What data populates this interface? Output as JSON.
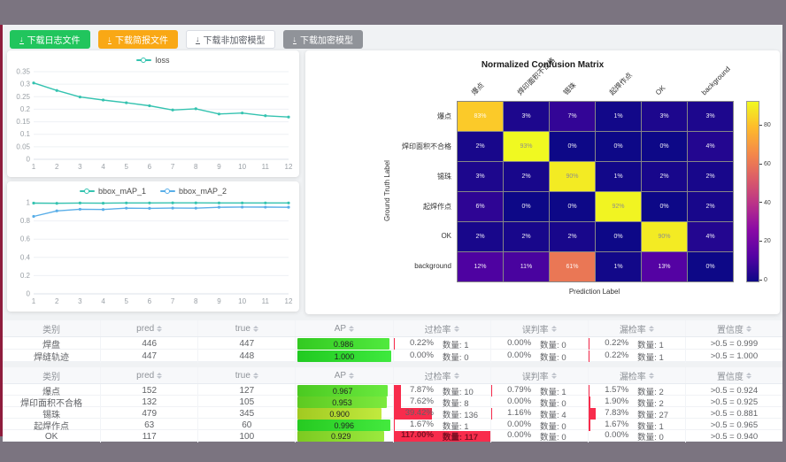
{
  "toolbar": {
    "download_icon": "↓",
    "buttons": [
      {
        "label": "下载日志文件",
        "variant": "green"
      },
      {
        "label": "下载简报文件",
        "variant": "orange"
      },
      {
        "label": "下载非加密模型",
        "variant": "plain"
      },
      {
        "label": "下载加密模型",
        "variant": "gray"
      }
    ]
  },
  "chart_data": [
    {
      "type": "line",
      "x": [
        1,
        2,
        3,
        4,
        5,
        6,
        7,
        8,
        9,
        10,
        11,
        12
      ],
      "ylim": [
        0,
        0.35
      ],
      "yticks": [
        0,
        0.05,
        0.1,
        0.15,
        0.2,
        0.25,
        0.3,
        0.35
      ],
      "grid": true,
      "legend_position": "top",
      "series": [
        {
          "name": "loss",
          "color": "#35c3b0",
          "values": [
            0.305,
            0.275,
            0.249,
            0.237,
            0.226,
            0.214,
            0.197,
            0.202,
            0.181,
            0.185,
            0.174,
            0.169
          ]
        }
      ]
    },
    {
      "type": "line",
      "x": [
        1,
        2,
        3,
        4,
        5,
        6,
        7,
        8,
        9,
        10,
        11,
        12
      ],
      "ylim": [
        0,
        1
      ],
      "yticks": [
        0,
        0.2,
        0.4,
        0.6,
        0.8,
        1
      ],
      "grid": true,
      "legend_position": "top",
      "series": [
        {
          "name": "bbox_mAP_1",
          "color": "#35c3b0",
          "values": [
            0.995,
            0.993,
            0.996,
            0.994,
            0.997,
            0.997,
            0.998,
            0.998,
            0.997,
            0.997,
            0.997,
            0.997
          ]
        },
        {
          "name": "bbox_mAP_2",
          "color": "#59aee8",
          "values": [
            0.85,
            0.91,
            0.928,
            0.925,
            0.94,
            0.938,
            0.941,
            0.94,
            0.95,
            0.952,
            0.951,
            0.95
          ]
        }
      ]
    },
    {
      "type": "heatmap",
      "title": "Normalized Confusion Matrix",
      "xlabel": "Prediction Label",
      "ylabel": "Ground Truth Label",
      "labels": [
        "爆点",
        "焊印面积不合格",
        "锡珠",
        "起焊作点",
        "OK",
        "background"
      ],
      "values_pct": [
        [
          83,
          3,
          7,
          1,
          3,
          3
        ],
        [
          2,
          93,
          0,
          0,
          0,
          4
        ],
        [
          3,
          2,
          90,
          1,
          2,
          2
        ],
        [
          6,
          0,
          0,
          92,
          0,
          2
        ],
        [
          2,
          2,
          2,
          0,
          90,
          4
        ],
        [
          12,
          11,
          61,
          1,
          13,
          0
        ]
      ],
      "vmax": 93,
      "colormap": "plasma",
      "colorbar_ticks": [
        0,
        20,
        40,
        60,
        80
      ]
    }
  ],
  "tables": [
    {
      "columns": [
        {
          "label": "类别",
          "sortable": false
        },
        {
          "label": "pred",
          "sortable": true
        },
        {
          "label": "true",
          "sortable": true
        },
        {
          "label": "AP",
          "sortable": true
        },
        {
          "label": "过检率",
          "sortable": true
        },
        {
          "label": "误判率",
          "sortable": true
        },
        {
          "label": "漏检率",
          "sortable": true
        },
        {
          "label": "置信度",
          "sortable": true
        }
      ],
      "rows": [
        {
          "label": "焊盘",
          "pred": "446",
          "true": "447",
          "ap": 0.986,
          "ap_text": "0.986",
          "rates": [
            {
              "pct": 0.22,
              "text": "0.22%",
              "count": "数量: 1"
            },
            {
              "pct": 0,
              "text": "0.00%",
              "count": "数量: 0"
            },
            {
              "pct": 0.22,
              "text": "0.22%",
              "count": "数量: 1"
            }
          ],
          "conf": ">0.5 = 0.999"
        },
        {
          "label": "焊缝轨迹",
          "pred": "447",
          "true": "448",
          "ap": 1.0,
          "ap_text": "1.000",
          "rates": [
            {
              "pct": 0,
              "text": "0.00%",
              "count": "数量: 0"
            },
            {
              "pct": 0,
              "text": "0.00%",
              "count": "数量: 0"
            },
            {
              "pct": 0.22,
              "text": "0.22%",
              "count": "数量: 1"
            }
          ],
          "conf": ">0.5 = 1.000"
        }
      ]
    },
    {
      "columns": [
        {
          "label": "类别",
          "sortable": false
        },
        {
          "label": "pred",
          "sortable": true
        },
        {
          "label": "true",
          "sortable": true
        },
        {
          "label": "AP",
          "sortable": true
        },
        {
          "label": "过检率",
          "sortable": true
        },
        {
          "label": "误判率",
          "sortable": true
        },
        {
          "label": "漏检率",
          "sortable": true
        },
        {
          "label": "置信度",
          "sortable": true
        }
      ],
      "rows": [
        {
          "label": "爆点",
          "pred": "152",
          "true": "127",
          "ap": 0.967,
          "ap_text": "0.967",
          "rates": [
            {
              "pct": 7.87,
              "text": "7.87%",
              "count": "数量: 10"
            },
            {
              "pct": 0.79,
              "text": "0.79%",
              "count": "数量: 1"
            },
            {
              "pct": 1.57,
              "text": "1.57%",
              "count": "数量: 2"
            }
          ],
          "conf": ">0.5 = 0.924"
        },
        {
          "label": "焊印面积不合格",
          "pred": "132",
          "true": "105",
          "ap": 0.953,
          "ap_text": "0.953",
          "rates": [
            {
              "pct": 7.62,
              "text": "7.62%",
              "count": "数量: 8"
            },
            {
              "pct": 0,
              "text": "0.00%",
              "count": "数量: 0"
            },
            {
              "pct": 1.9,
              "text": "1.90%",
              "count": "数量: 2"
            }
          ],
          "conf": ">0.5 = 0.925"
        },
        {
          "label": "锡珠",
          "pred": "479",
          "true": "345",
          "ap": 0.9,
          "ap_text": "0.900",
          "rates": [
            {
              "pct": 39.42,
              "text": "39.42%",
              "count": "数量: 136"
            },
            {
              "pct": 1.16,
              "text": "1.16%",
              "count": "数量: 4"
            },
            {
              "pct": 7.83,
              "text": "7.83%",
              "count": "数量: 27"
            }
          ],
          "conf": ">0.5 = 0.881"
        },
        {
          "label": "起焊作点",
          "pred": "63",
          "true": "60",
          "ap": 0.996,
          "ap_text": "0.996",
          "rates": [
            {
              "pct": 1.67,
              "text": "1.67%",
              "count": "数量: 1"
            },
            {
              "pct": 0,
              "text": "0.00%",
              "count": "数量: 0"
            },
            {
              "pct": 1.67,
              "text": "1.67%",
              "count": "数量: 1"
            }
          ],
          "conf": ">0.5 = 0.965"
        },
        {
          "label": "OK",
          "pred": "117",
          "true": "100",
          "ap": 0.929,
          "ap_text": "0.929",
          "rates": [
            {
              "pct": 117,
              "text": "117.00%",
              "count": "数量: 117"
            },
            {
              "pct": 0,
              "text": "0.00%",
              "count": "数量: 0"
            },
            {
              "pct": 0,
              "text": "0.00%",
              "count": "数量: 0"
            }
          ],
          "conf": ">0.5 = 0.940"
        }
      ]
    }
  ],
  "colors": {
    "accent_green": "#21c55d",
    "accent_orange": "#f9a815",
    "button_gray": "#909399",
    "bar_red": "#f82c4c",
    "series_teal": "#35c3b0",
    "series_blue": "#59aee8",
    "left_strip": "#8f1d3d"
  }
}
